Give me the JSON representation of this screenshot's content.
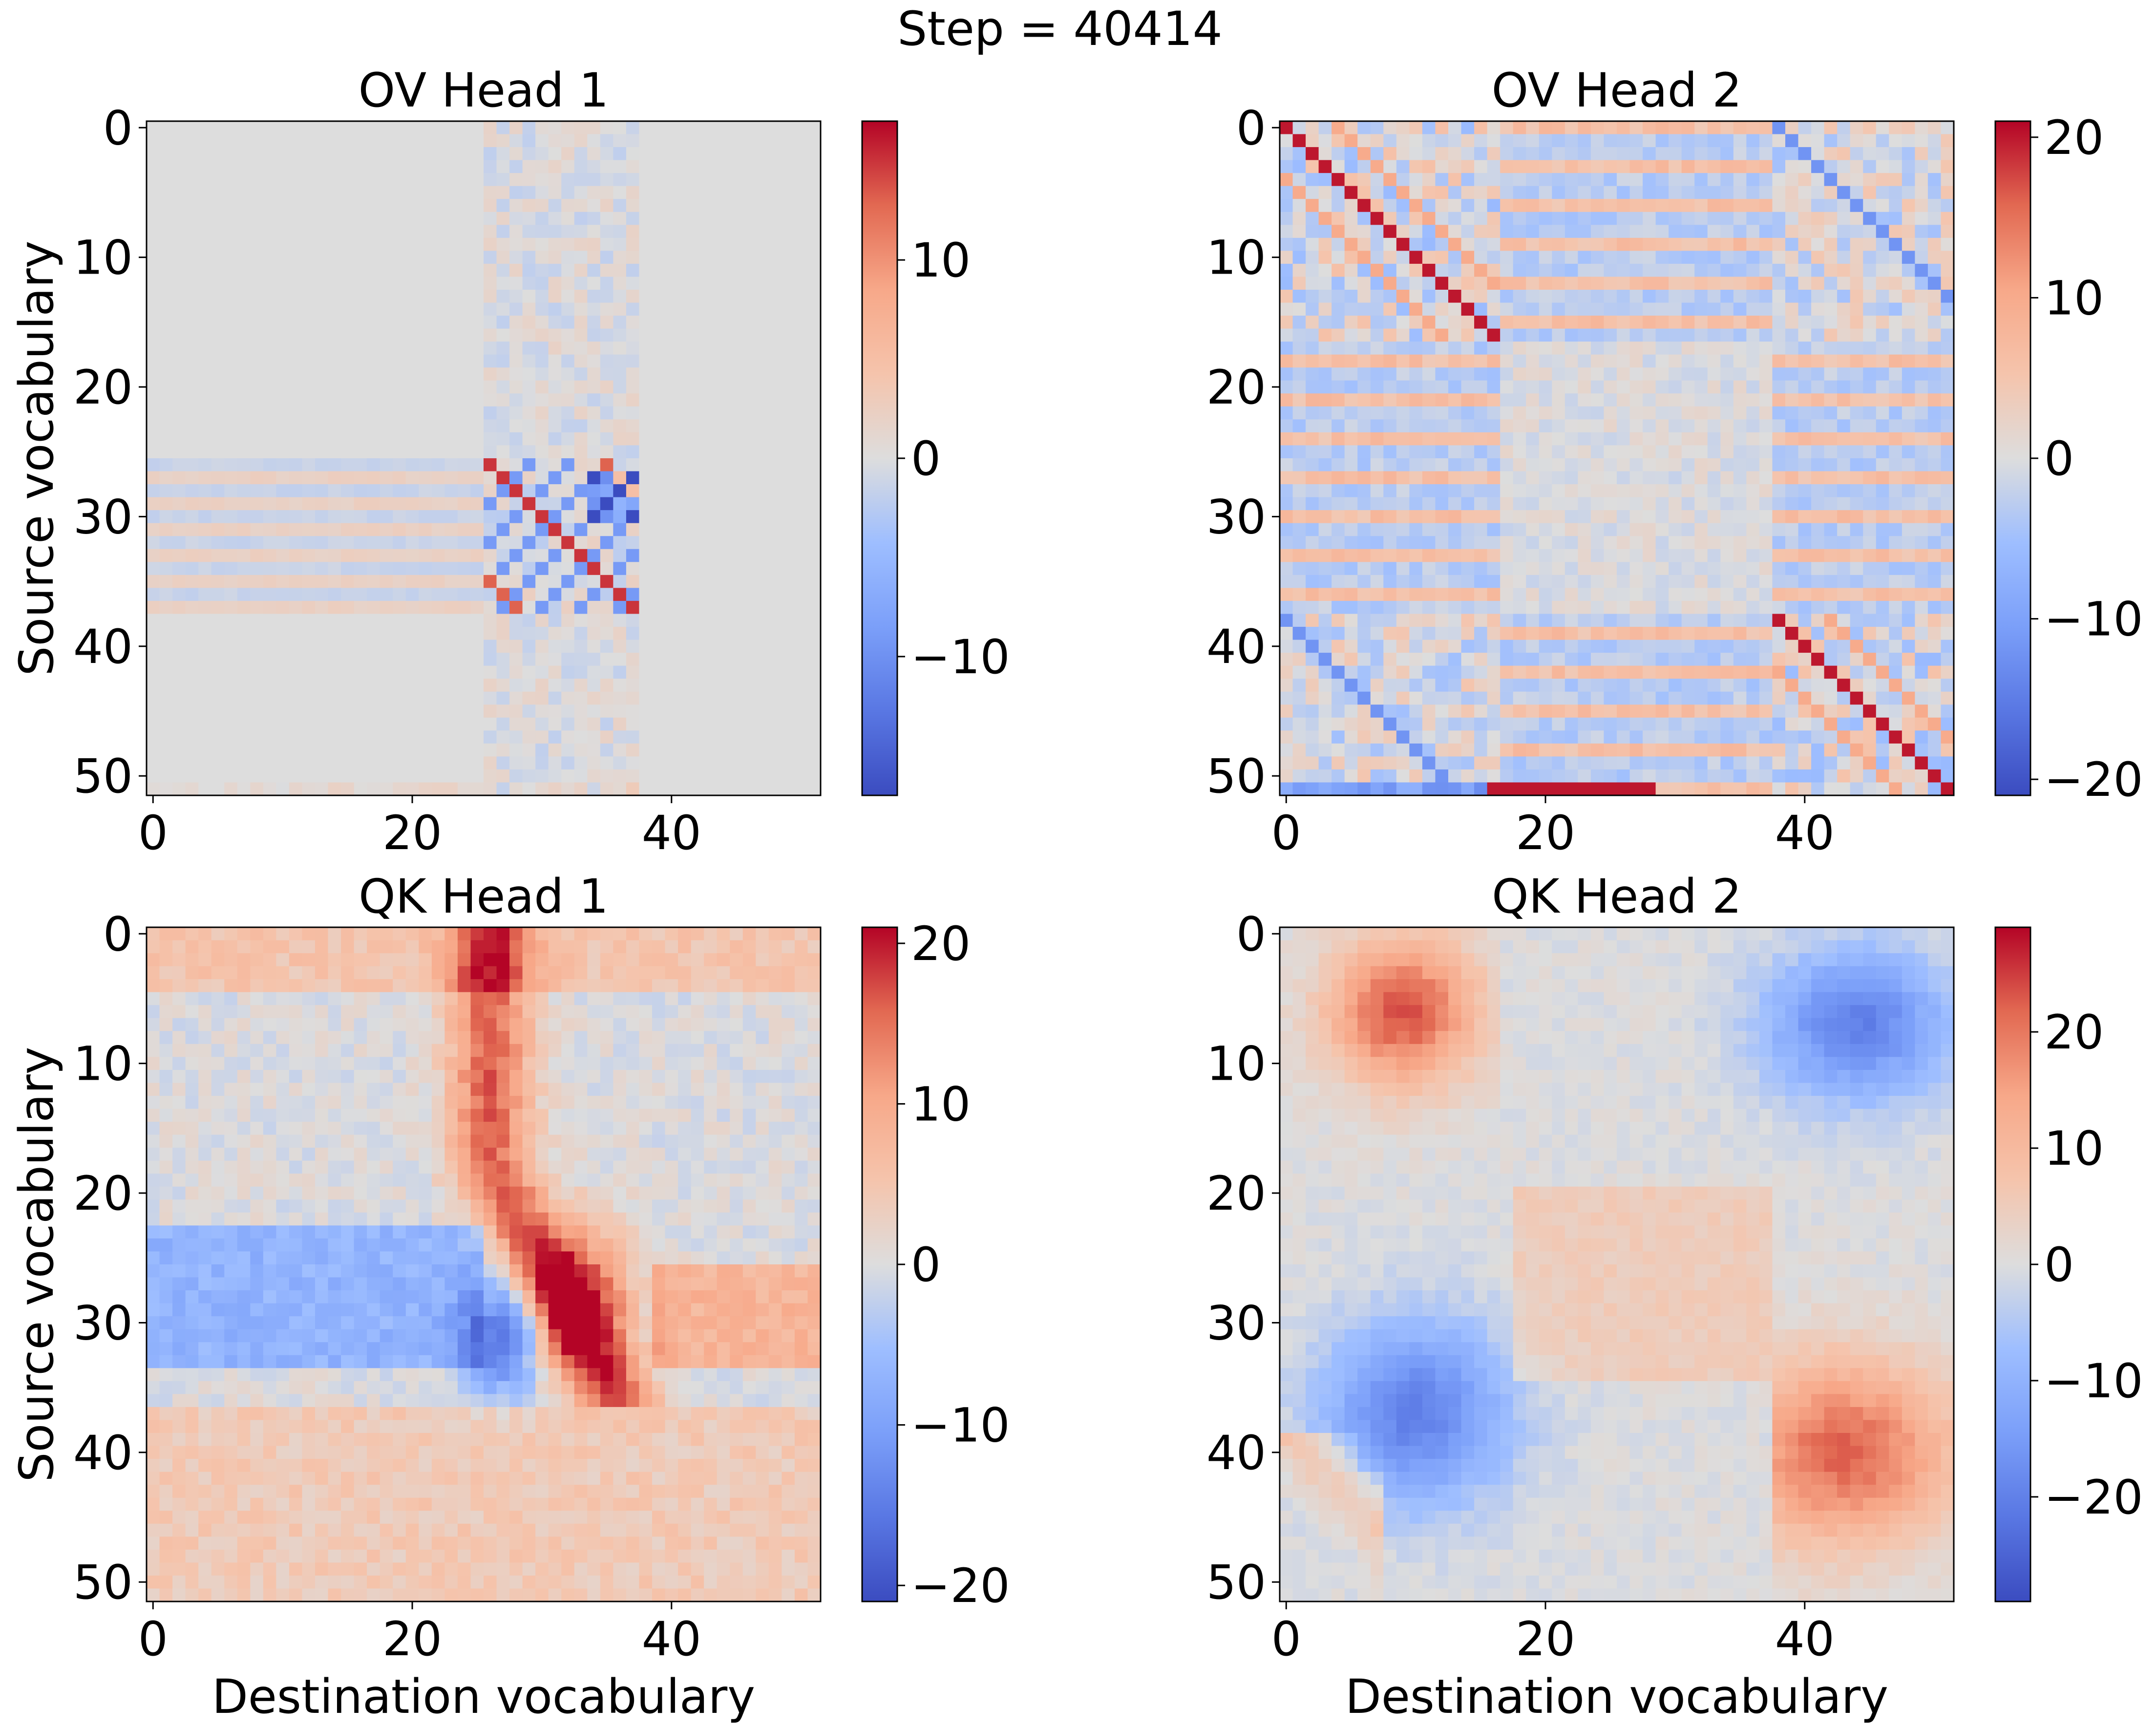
{
  "figure": {
    "suptitle": "Step = 40414"
  },
  "chart_data": [
    {
      "type": "heatmap",
      "title": "OV Head 1",
      "ylabel": "Source vocabulary",
      "xlabel": "",
      "size": 52,
      "xticks": [
        0,
        20,
        40
      ],
      "yticks": [
        0,
        10,
        20,
        30,
        40,
        50
      ],
      "vmin": -17,
      "vmax": 17,
      "colorbar_ticks": [
        -10,
        0,
        10
      ],
      "colorbar_tick_labels": [
        "−10",
        "0",
        "10"
      ],
      "pattern": "ov1",
      "description_values": "near-zero background; active block rows 26-37 x cols 26-37 with positive diagonal (~+17) and negative off-diagonal (~-17)"
    },
    {
      "type": "heatmap",
      "title": "OV Head 2",
      "ylabel": "",
      "xlabel": "",
      "size": 52,
      "xticks": [
        0,
        20,
        40
      ],
      "yticks": [
        0,
        10,
        20,
        30,
        40,
        50
      ],
      "vmin": -21,
      "vmax": 21,
      "colorbar_ticks": [
        -20,
        -10,
        0,
        10,
        20
      ],
      "colorbar_tick_labels": [
        "−20",
        "−10",
        "0",
        "10",
        "20"
      ],
      "pattern": "ov2"
    },
    {
      "type": "heatmap",
      "title": "QK Head 1",
      "ylabel": "Source vocabulary",
      "xlabel": "Destination vocabulary",
      "size": 52,
      "xticks": [
        0,
        20,
        40
      ],
      "yticks": [
        0,
        10,
        20,
        30,
        40,
        50
      ],
      "vmin": -21,
      "vmax": 21,
      "colorbar_ticks": [
        -20,
        -10,
        0,
        10,
        20
      ],
      "colorbar_tick_labels": [
        "−20",
        "−10",
        "0",
        "10",
        "20"
      ],
      "pattern": "qk1"
    },
    {
      "type": "heatmap",
      "title": "QK Head 2",
      "ylabel": "",
      "xlabel": "Destination vocabulary",
      "size": 52,
      "xticks": [
        0,
        20,
        40
      ],
      "yticks": [
        0,
        10,
        20,
        30,
        40,
        50
      ],
      "vmin": -29,
      "vmax": 29,
      "colorbar_ticks": [
        -20,
        -10,
        0,
        10,
        20
      ],
      "colorbar_tick_labels": [
        "−20",
        "−10",
        "0",
        "10",
        "20"
      ],
      "pattern": "qk2"
    }
  ]
}
